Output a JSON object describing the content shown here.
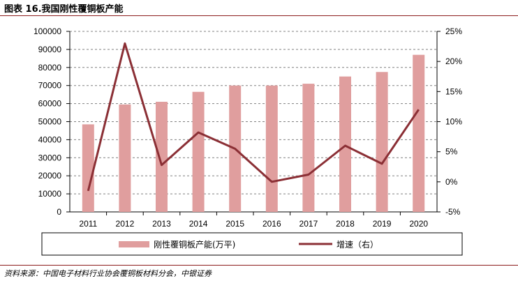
{
  "figure_title": "图表 16.我国刚性覆铜板产能",
  "source": "资料来源：中国电子材料行业协会覆铜板材料分会，中银证券",
  "chart_data": {
    "type": "bar",
    "categories": [
      "2011",
      "2012",
      "2013",
      "2014",
      "2015",
      "2016",
      "2017",
      "2018",
      "2019",
      "2020"
    ],
    "series": [
      {
        "name": "刚性覆铜板产能(万平)",
        "type": "bar",
        "axis": "left",
        "color": "#e09e9e",
        "values": [
          48500,
          59500,
          61000,
          66500,
          70000,
          70000,
          71000,
          75000,
          77500,
          87000
        ]
      },
      {
        "name": "增速（右）",
        "type": "line",
        "axis": "right",
        "color": "#8b2f35",
        "values": [
          -1.5,
          23.0,
          2.8,
          8.2,
          5.5,
          0.0,
          1.2,
          6.0,
          3.0,
          12.0
        ]
      }
    ],
    "y_left": {
      "min": 0,
      "max": 100000,
      "step": 10000,
      "tick_labels": [
        "0",
        "10000",
        "20000",
        "30000",
        "40000",
        "50000",
        "60000",
        "70000",
        "80000",
        "90000",
        "100000"
      ]
    },
    "y_right": {
      "min": -5,
      "max": 25,
      "step": 5,
      "tick_labels": [
        "-5%",
        "0%",
        "5%",
        "10%",
        "15%",
        "20%",
        "25%"
      ]
    },
    "grid": "horizontal-dashed",
    "legend_position": "bottom"
  }
}
